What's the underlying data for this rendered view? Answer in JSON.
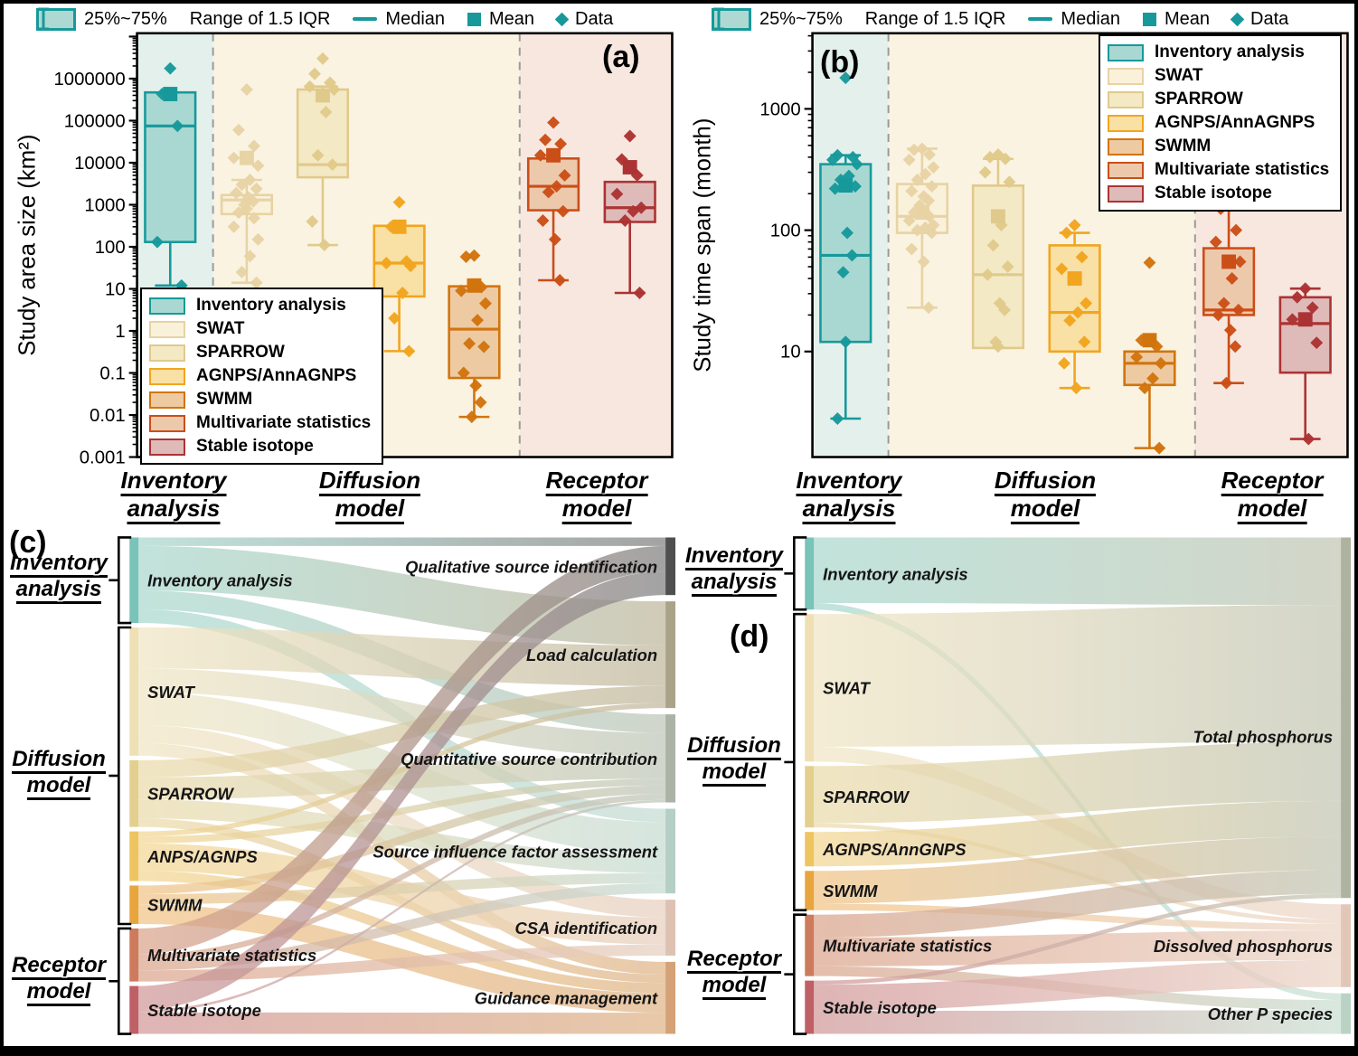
{
  "figure": {
    "panels": {
      "a": "(a)",
      "b": "(b)",
      "c": "(c)",
      "d": "(d)"
    }
  },
  "stats_legend": [
    {
      "icon": "box-icon",
      "label": "25%~75%"
    },
    {
      "icon": "iqr-whisker-icon",
      "label": "Range of 1.5 IQR"
    },
    {
      "icon": "median-line-icon",
      "label": "Median"
    },
    {
      "icon": "mean-square-icon",
      "label": "Mean"
    },
    {
      "icon": "data-diamond-icon",
      "label": "Data"
    }
  ],
  "methods": [
    {
      "label": "Inventory analysis",
      "stroke": "#17999b",
      "fill": "#a9d8d2",
      "node": "#79c3b8",
      "flow": "#a9d8cd"
    },
    {
      "label": "SWAT",
      "stroke": "#e7d3a4",
      "fill": "#faf1da",
      "node": "#eee0b4",
      "flow": "#f0e5c4"
    },
    {
      "label": "SPARROW",
      "stroke": "#e0ca8b",
      "fill": "#f4e9c5",
      "node": "#e3cf8e",
      "flow": "#ebdbab"
    },
    {
      "label": "AGNPS/AnnAGNPS",
      "stroke": "#f2a51f",
      "fill": "#f9e0a4",
      "node": "#edc45f",
      "flow": "#f3d693"
    },
    {
      "label": "SWMM",
      "stroke": "#d2740e",
      "fill": "#edcaa2",
      "node": "#e8a53e",
      "flow": "#f0c386"
    },
    {
      "label": "Multivariate statistics",
      "stroke": "#cb4e17",
      "fill": "#edc9ac",
      "node": "#cd7b5c",
      "flow": "#dba48c"
    },
    {
      "label": "Stable isotope",
      "stroke": "#ac3334",
      "fill": "#debbb9",
      "node": "#bf6066",
      "flow": "#d29899"
    }
  ],
  "bands": {
    "inventory": "#e4f0ec",
    "diffusion": "#faf3e1",
    "receptor": "#f7e7df"
  },
  "axis_groups": [
    {
      "line1": "Inventory",
      "line2": "analysis"
    },
    {
      "line1": "Diffusion",
      "line2": "model"
    },
    {
      "line1": "Receptor",
      "line2": "model"
    }
  ],
  "chart_data": [
    {
      "id": "a",
      "type": "box",
      "ylabel": "Study area size (km²)",
      "yscale": "log",
      "ylim": [
        0.001,
        12000000
      ],
      "ticks": [
        1000000,
        100000,
        10000,
        1000,
        100,
        10,
        1,
        0.1,
        0.01,
        0.001
      ],
      "x_groups": [
        "Inventory analysis",
        "Diffusion model",
        "Receptor model"
      ],
      "series": [
        {
          "name": "Inventory analysis",
          "method": 0,
          "q1": 130,
          "q3": 470000,
          "median": 75000,
          "mean": 430000,
          "whisker_low": 12,
          "whisker_high": 470000,
          "data": [
            1750000,
            430000,
            75000,
            130,
            12
          ]
        },
        {
          "name": "SWAT",
          "method": 1,
          "q1": 600,
          "q3": 1700,
          "median": 1300,
          "mean": 13000,
          "whisker_low": 14,
          "whisker_high": 3900,
          "data": [
            550000,
            60000,
            25000,
            13000,
            8500,
            3900,
            3000,
            2400,
            1900,
            1500,
            1200,
            1000,
            800,
            650,
            480,
            300,
            150,
            60,
            25,
            14
          ]
        },
        {
          "name": "SPARROW",
          "method": 2,
          "q1": 4500,
          "q3": 550000,
          "median": 9000,
          "mean": 400000,
          "whisker_low": 110,
          "whisker_high": 650000,
          "data": [
            3000000,
            1300000,
            800000,
            650000,
            550000,
            160000,
            15000,
            9000,
            400,
            110
          ]
        },
        {
          "name": "AGNPS/AnnAGNPS",
          "method": 3,
          "q1": 6.6,
          "q3": 316,
          "median": 41,
          "mean": 300,
          "whisker_low": 0.33,
          "whisker_high": 316,
          "data": [
            1150,
            300,
            45,
            41,
            35,
            8,
            2,
            0.33
          ]
        },
        {
          "name": "SWMM",
          "method": 4,
          "q1": 0.076,
          "q3": 11.5,
          "median": 1.1,
          "mean": 12,
          "whisker_low": 0.009,
          "whisker_high": 11.5,
          "data": [
            62,
            58,
            11,
            9,
            4.5,
            1.8,
            0.5,
            0.42,
            0.1,
            0.05,
            0.02,
            0.009
          ]
        },
        {
          "name": "Multivariate statistics",
          "method": 5,
          "q1": 740,
          "q3": 12600,
          "median": 2750,
          "mean": 15000,
          "whisker_low": 16,
          "whisker_high": 12600,
          "data": [
            90000,
            35000,
            28000,
            15000,
            5000,
            2750,
            2000,
            700,
            420,
            150,
            16
          ]
        },
        {
          "name": "Stable isotope",
          "method": 6,
          "q1": 390,
          "q3": 3500,
          "median": 850,
          "mean": 7800,
          "whisker_low": 8,
          "whisker_high": 3500,
          "data": [
            43000,
            12000,
            5000,
            1800,
            850,
            700,
            420,
            8
          ]
        }
      ]
    },
    {
      "id": "b",
      "type": "box",
      "ylabel": "Study time span (month)",
      "yscale": "log",
      "ylim": [
        1.35,
        4200
      ],
      "ticks": [
        1000,
        100,
        10
      ],
      "x_groups": [
        "Inventory analysis",
        "Diffusion model",
        "Receptor model"
      ],
      "series": [
        {
          "name": "Inventory analysis",
          "method": 0,
          "q1": 12,
          "q3": 350,
          "median": 62,
          "mean": 234,
          "whisker_low": 2.8,
          "whisker_high": 415,
          "data": [
            1800,
            415,
            400,
            380,
            350,
            280,
            260,
            230,
            220,
            95,
            62,
            45,
            12,
            2.8
          ]
        },
        {
          "name": "SWAT",
          "method": 1,
          "q1": 95,
          "q3": 240,
          "median": 130,
          "mean": 140,
          "whisker_low": 23,
          "whisker_high": 470,
          "data": [
            470,
            460,
            420,
            380,
            330,
            290,
            260,
            230,
            210,
            190,
            175,
            160,
            150,
            140,
            130,
            120,
            110,
            105,
            100,
            95,
            70,
            55,
            23
          ]
        },
        {
          "name": "SPARROW",
          "method": 2,
          "q1": 10.7,
          "q3": 233,
          "median": 43,
          "mean": 130,
          "whisker_low": 10.7,
          "whisker_high": 387,
          "data": [
            420,
            400,
            387,
            300,
            250,
            110,
            75,
            50,
            43,
            25,
            22,
            12,
            11
          ]
        },
        {
          "name": "AGNPS/AnnAGNPS",
          "method": 3,
          "q1": 10,
          "q3": 75,
          "median": 21,
          "mean": 40,
          "whisker_low": 5,
          "whisker_high": 95,
          "data": [
            110,
            95,
            60,
            48,
            25,
            21,
            18,
            12,
            8,
            5
          ]
        },
        {
          "name": "SWMM",
          "method": 4,
          "q1": 5.3,
          "q3": 10,
          "median": 8,
          "mean": 12.4,
          "whisker_low": 1.6,
          "whisker_high": 10,
          "data": [
            54,
            12.4,
            11,
            9,
            8,
            6,
            5,
            1.6
          ]
        },
        {
          "name": "Multivariate statistics",
          "method": 5,
          "q1": 20,
          "q3": 71,
          "median": 22,
          "mean": 55,
          "whisker_low": 5.5,
          "whisker_high": 150,
          "data": [
            170,
            150,
            100,
            80,
            55,
            40,
            25,
            22,
            20,
            15,
            11,
            5.5
          ]
        },
        {
          "name": "Stable isotope",
          "method": 6,
          "q1": 6.7,
          "q3": 28,
          "median": 17,
          "mean": 18.4,
          "whisker_low": 1.9,
          "whisker_high": 33,
          "data": [
            33,
            28,
            23,
            18.4,
            11.8,
            1.9
          ]
        }
      ]
    },
    {
      "id": "c",
      "type": "sankey",
      "left_nodes": [
        {
          "label": "Inventory analysis",
          "method": 0,
          "value": 100
        },
        {
          "label": "SWAT",
          "method": 1,
          "value": 150
        },
        {
          "label": "SPARROW",
          "method": 2,
          "value": 78
        },
        {
          "label": "ANPS/AGNPS",
          "method": 3,
          "value": 58
        },
        {
          "label": "SWMM",
          "method": 4,
          "value": 45
        },
        {
          "label": "Multivariate statistics",
          "method": 5,
          "value": 62
        },
        {
          "label": "Stable isotope",
          "method": 6,
          "value": 56
        }
      ],
      "right_nodes": [
        {
          "label": "Qualitative source identification",
          "value": 68,
          "color": "#4f4f4f",
          "flow": "#8c8c8c"
        },
        {
          "label": "Load calculation",
          "value": 126,
          "color": "#aaa289",
          "flow": "#c5bea6"
        },
        {
          "label": "Quantitative source contribution",
          "value": 104,
          "color": "#aab3a6",
          "flow": "#c4ccbf"
        },
        {
          "label": "Source influence factor assessment",
          "value": 100,
          "color": "#b5cfc6",
          "flow": "#cbdfd7"
        },
        {
          "label": "CSA identification",
          "value": 66,
          "color": "#ddc2b2",
          "flow": "#e9d4c5"
        },
        {
          "label": "Guidance management",
          "value": 85,
          "color": "#d4a276",
          "flow": "#e2bb92"
        }
      ],
      "links": [
        [
          0,
          0,
          10
        ],
        [
          0,
          1,
          52
        ],
        [
          0,
          2,
          22
        ],
        [
          0,
          3,
          16
        ],
        [
          1,
          1,
          48
        ],
        [
          1,
          2,
          28
        ],
        [
          1,
          3,
          38
        ],
        [
          1,
          4,
          21
        ],
        [
          1,
          5,
          15
        ],
        [
          2,
          1,
          20
        ],
        [
          2,
          2,
          26
        ],
        [
          2,
          3,
          22
        ],
        [
          2,
          5,
          10
        ],
        [
          3,
          1,
          6
        ],
        [
          3,
          2,
          8
        ],
        [
          3,
          4,
          32
        ],
        [
          3,
          5,
          12
        ],
        [
          4,
          2,
          10
        ],
        [
          4,
          3,
          12
        ],
        [
          4,
          5,
          23
        ],
        [
          5,
          0,
          30
        ],
        [
          5,
          2,
          7
        ],
        [
          5,
          3,
          12
        ],
        [
          5,
          4,
          13
        ],
        [
          6,
          0,
          28
        ],
        [
          6,
          2,
          3
        ],
        [
          6,
          5,
          25
        ]
      ],
      "groups": [
        {
          "line1": "Inventory",
          "line2": "analysis",
          "nodes": [
            0,
            0
          ]
        },
        {
          "line1": "Diffusion",
          "line2": "model",
          "nodes": [
            1,
            4
          ]
        },
        {
          "line1": "Receptor",
          "line2": "model",
          "nodes": [
            5,
            6
          ]
        }
      ]
    },
    {
      "id": "d",
      "type": "sankey",
      "left_nodes": [
        {
          "label": "Inventory analysis",
          "method": 0,
          "value": 88
        },
        {
          "label": "SWAT",
          "method": 1,
          "value": 180
        },
        {
          "label": "SPARROW",
          "method": 2,
          "value": 75
        },
        {
          "label": "AGNPS/AnnGNPS",
          "method": 3,
          "value": 42
        },
        {
          "label": "SWMM",
          "method": 4,
          "value": 48
        },
        {
          "label": "Multivariate statistics",
          "method": 5,
          "value": 75
        },
        {
          "label": "Stable isotope",
          "method": 6,
          "value": 65
        }
      ],
      "right_nodes": [
        {
          "label": "Total phosphorus",
          "value": 427,
          "color": "#aeb2a0",
          "flow": "#c8cbba"
        },
        {
          "label": "Dissolved phosphorus",
          "value": 98,
          "color": "#e2c6b8",
          "flow": "#eed9cc"
        },
        {
          "label": "Other P species",
          "value": 48,
          "color": "#b9d2c4",
          "flow": "#cfe2d6"
        }
      ],
      "links": [
        [
          0,
          0,
          80
        ],
        [
          0,
          2,
          8
        ],
        [
          1,
          0,
          162
        ],
        [
          1,
          1,
          18
        ],
        [
          2,
          0,
          70
        ],
        [
          2,
          1,
          5
        ],
        [
          3,
          0,
          42
        ],
        [
          4,
          0,
          40
        ],
        [
          4,
          1,
          8
        ],
        [
          5,
          0,
          28
        ],
        [
          5,
          1,
          35
        ],
        [
          5,
          2,
          12
        ],
        [
          6,
          0,
          5
        ],
        [
          6,
          1,
          32
        ],
        [
          6,
          2,
          28
        ]
      ],
      "groups": [
        {
          "line1": "Inventory",
          "line2": "analysis",
          "nodes": [
            0,
            0
          ]
        },
        {
          "line1": "Diffusion",
          "line2": "model",
          "nodes": [
            1,
            4
          ]
        },
        {
          "line1": "Receptor",
          "line2": "model",
          "nodes": [
            5,
            6
          ]
        }
      ]
    }
  ]
}
